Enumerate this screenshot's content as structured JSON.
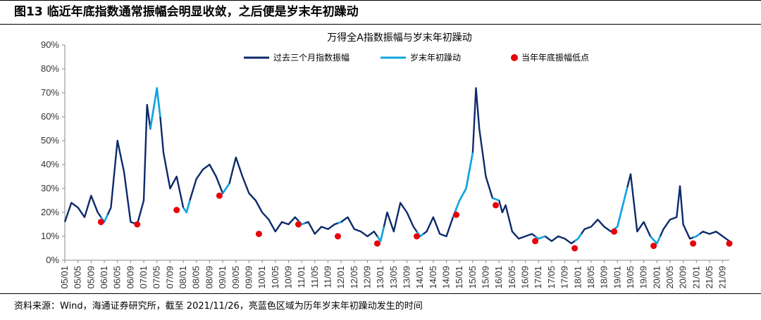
{
  "figure_title": "图13 临近年底指数通常振幅会明显收敛，之后便是岁末年初躁动",
  "source_note": "资料来源：Wind，海通证券研究所，截至 2021/11/26，亮蓝色区域为历年岁末年初躁动发生的时间",
  "colors": {
    "amplitude": "#0d2a6b",
    "rally": "#12a6e2",
    "low": "#e8000b"
  },
  "chart_data": {
    "type": "line",
    "title": "万得全A指数振幅与岁末年初躁动",
    "xlabel": "",
    "ylabel": "",
    "ylim": [
      0,
      90
    ],
    "yticks": [
      "0%",
      "10%",
      "20%",
      "30%",
      "40%",
      "50%",
      "60%",
      "70%",
      "80%",
      "90%"
    ],
    "xticks": [
      "05/01",
      "05/05",
      "05/09",
      "06/01",
      "06/05",
      "06/09",
      "07/01",
      "07/05",
      "07/09",
      "08/01",
      "08/05",
      "08/09",
      "09/01",
      "09/05",
      "09/09",
      "10/01",
      "10/05",
      "10/09",
      "11/01",
      "11/05",
      "11/09",
      "12/01",
      "12/05",
      "12/09",
      "13/01",
      "13/05",
      "13/09",
      "14/01",
      "14/05",
      "14/09",
      "15/01",
      "15/05",
      "15/09",
      "16/01",
      "16/05",
      "16/09",
      "17/01",
      "17/05",
      "17/09",
      "18/01",
      "18/05",
      "18/09",
      "19/01",
      "19/05",
      "19/09",
      "20/01",
      "20/05",
      "20/09",
      "21/01",
      "21/05",
      "21/09"
    ],
    "legend": [
      "过去三个月指数振幅",
      "岁末年初躁动",
      "当年年底振幅低点"
    ],
    "legend_position": "top",
    "series": [
      {
        "name": "过去三个月指数振幅",
        "x": [
          "05/01",
          "05/03",
          "05/05",
          "05/07",
          "05/09",
          "05/11",
          "06/01",
          "06/03",
          "06/05",
          "06/07",
          "06/09",
          "06/11",
          "07/01",
          "07/02",
          "07/03",
          "07/05",
          "07/06",
          "07/07",
          "07/09",
          "07/11",
          "08/01",
          "08/02",
          "08/03",
          "08/05",
          "08/07",
          "08/09",
          "08/11",
          "09/01",
          "09/03",
          "09/05",
          "09/07",
          "09/09",
          "09/11",
          "10/01",
          "10/03",
          "10/05",
          "10/07",
          "10/09",
          "10/11",
          "11/01",
          "11/03",
          "11/05",
          "11/07",
          "11/09",
          "11/11",
          "12/01",
          "12/03",
          "12/05",
          "12/07",
          "12/09",
          "12/11",
          "13/01",
          "13/03",
          "13/05",
          "13/07",
          "13/09",
          "13/11",
          "14/01",
          "14/03",
          "14/05",
          "14/07",
          "14/09",
          "14/11",
          "15/01",
          "15/03",
          "15/05",
          "15/06",
          "15/07",
          "15/09",
          "15/11",
          "16/01",
          "16/02",
          "16/03",
          "16/05",
          "16/07",
          "16/09",
          "16/11",
          "17/01",
          "17/03",
          "17/05",
          "17/07",
          "17/09",
          "17/11",
          "18/01",
          "18/03",
          "18/05",
          "18/07",
          "18/09",
          "18/11",
          "19/01",
          "19/03",
          "19/05",
          "19/07",
          "19/09",
          "19/11",
          "20/01",
          "20/03",
          "20/05",
          "20/07",
          "20/08",
          "20/09",
          "20/11",
          "21/01",
          "21/03",
          "21/05",
          "21/07",
          "21/09",
          "21/11"
        ],
        "y": [
          16,
          24,
          22,
          18,
          27,
          20,
          16,
          22,
          50,
          37,
          16,
          15,
          25,
          65,
          55,
          72,
          60,
          45,
          30,
          35,
          22,
          20,
          25,
          34,
          38,
          40,
          35,
          28,
          32,
          43,
          35,
          28,
          25,
          20,
          17,
          12,
          16,
          15,
          18,
          15,
          16,
          11,
          14,
          13,
          15,
          16,
          18,
          13,
          12,
          10,
          12,
          8,
          20,
          12,
          24,
          20,
          14,
          10,
          12,
          18,
          11,
          10,
          18,
          25,
          30,
          45,
          72,
          55,
          35,
          26,
          25,
          20,
          23,
          12,
          9,
          10,
          11,
          9,
          10,
          8,
          10,
          9,
          7,
          9,
          13,
          14,
          17,
          14,
          12,
          14,
          25,
          36,
          12,
          16,
          10,
          7,
          13,
          17,
          18,
          31,
          15,
          9,
          10,
          12,
          11,
          12,
          10,
          8
        ]
      },
      {
        "name": "岁末年初躁动",
        "ranges": [
          [
            "05/12",
            "06/02"
          ],
          [
            "07/03",
            "07/06"
          ],
          [
            "08/01",
            "08/03"
          ],
          [
            "09/01",
            "09/03"
          ],
          [
            "10/12",
            "11/02"
          ],
          [
            "11/12",
            "12/01"
          ],
          [
            "12/12",
            "13/02"
          ],
          [
            "13/12",
            "14/02"
          ],
          [
            "14/11",
            "15/05"
          ],
          [
            "15/11",
            "16/01"
          ],
          [
            "16/12",
            "17/03"
          ],
          [
            "17/12",
            "18/02"
          ],
          [
            "18/12",
            "19/04"
          ],
          [
            "19/11",
            "20/02"
          ],
          [
            "20/12",
            "21/02"
          ]
        ]
      },
      {
        "name": "当年年底振幅低点",
        "x": [
          "05/12",
          "06/11",
          "07/11",
          "08/12",
          "09/12",
          "10/12",
          "11/12",
          "12/12",
          "13/12",
          "14/12",
          "15/12",
          "16/12",
          "17/12",
          "18/12",
          "19/12",
          "20/12",
          "21/11"
        ],
        "y": [
          16,
          15,
          21,
          27,
          11,
          15,
          10,
          7,
          10,
          19,
          23,
          8,
          5,
          12,
          6,
          7,
          7
        ]
      }
    ]
  }
}
